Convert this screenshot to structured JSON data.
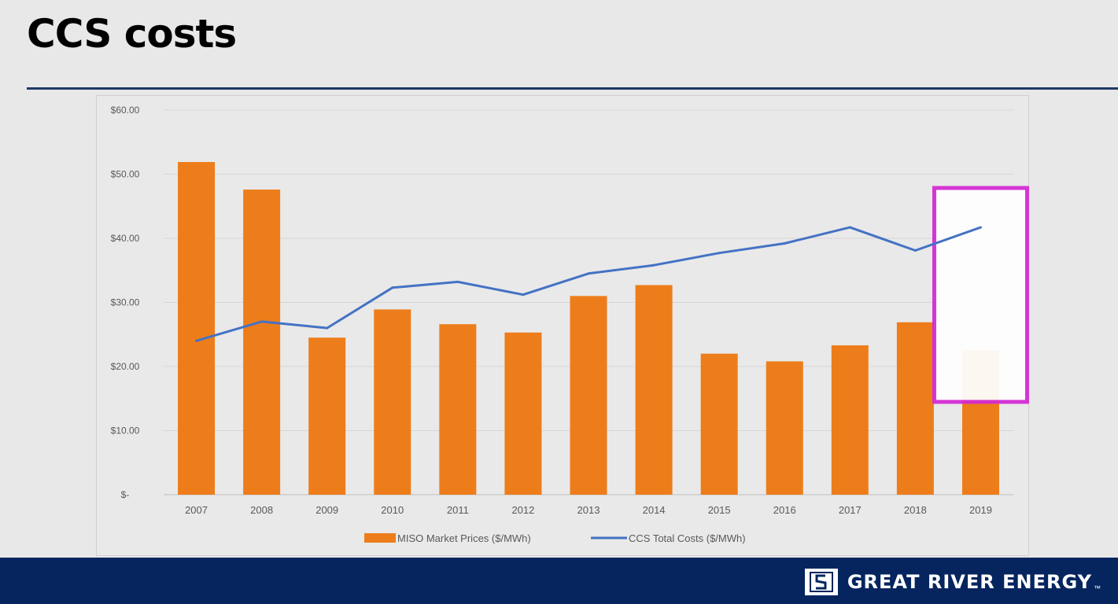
{
  "slide": {
    "title": "CCS costs"
  },
  "brand": {
    "name": "GREAT RIVER ENERGY",
    "tm": "™",
    "logo_icon": "river-s-logo-icon"
  },
  "colors": {
    "bar": "#ed7d1a",
    "line": "#4472c4",
    "highlight": "#d42bd4",
    "title_rule": "#1f3864",
    "footer": "#06255f"
  },
  "chart_data": {
    "type": "bar",
    "categories": [
      "2007",
      "2008",
      "2009",
      "2010",
      "2011",
      "2012",
      "2013",
      "2014",
      "2015",
      "2016",
      "2017",
      "2018",
      "2019"
    ],
    "series": [
      {
        "name": "MISO Market Prices ($/MWh)",
        "type": "bar",
        "values": [
          51.9,
          47.6,
          24.5,
          28.9,
          26.6,
          25.3,
          31.0,
          32.7,
          22.0,
          20.8,
          23.3,
          26.9,
          22.5
        ]
      },
      {
        "name": "CCS Total Costs ($/MWh)",
        "type": "line",
        "values": [
          24.0,
          27.0,
          26.0,
          32.3,
          33.2,
          31.2,
          34.5,
          35.8,
          37.7,
          39.2,
          41.7,
          38.1,
          41.7
        ]
      }
    ],
    "ylim": [
      0,
      60
    ],
    "yticks": [
      0,
      10,
      20,
      30,
      40,
      50,
      60
    ],
    "ytick_labels": [
      "$-",
      "$10.00",
      "$20.00",
      "$30.00",
      "$40.00",
      "$50.00",
      "$60.00"
    ],
    "grid": true,
    "legend_position": "bottom",
    "highlighted_category": "2019"
  }
}
